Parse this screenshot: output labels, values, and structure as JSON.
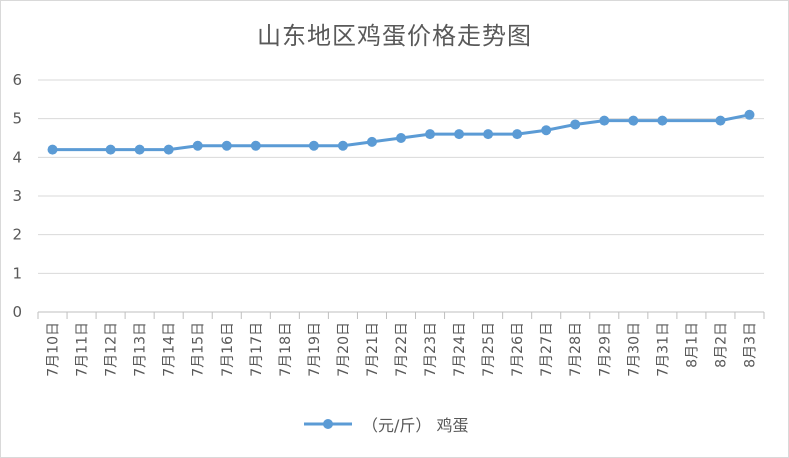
{
  "chart_data": {
    "type": "line",
    "title": "山东地区鸡蛋价格走势图",
    "xlabel": "",
    "ylabel": "",
    "ylim": [
      0,
      6
    ],
    "yticks": [
      0,
      1,
      2,
      3,
      4,
      5,
      6
    ],
    "grid": true,
    "legend_position": "bottom",
    "categories": [
      "7月10日",
      "7月11日",
      "7月12日",
      "7月13日",
      "7月14日",
      "7月15日",
      "7月16日",
      "7月17日",
      "7月18日",
      "7月19日",
      "7月20日",
      "7月21日",
      "7月22日",
      "7月23日",
      "7月24日",
      "7月25日",
      "7月26日",
      "7月27日",
      "7月28日",
      "7月29日",
      "7月30日",
      "7月31日",
      "8月1日",
      "8月2日",
      "8月3日"
    ],
    "series": [
      {
        "name": "（元/斤） 鸡蛋",
        "color": "#5b9bd5",
        "values": [
          4.2,
          null,
          4.2,
          4.2,
          4.2,
          4.3,
          4.3,
          4.3,
          null,
          4.3,
          4.3,
          4.4,
          4.5,
          4.6,
          4.6,
          4.6,
          4.6,
          4.7,
          4.85,
          4.95,
          4.95,
          4.95,
          null,
          4.95,
          5.1
        ]
      }
    ]
  }
}
